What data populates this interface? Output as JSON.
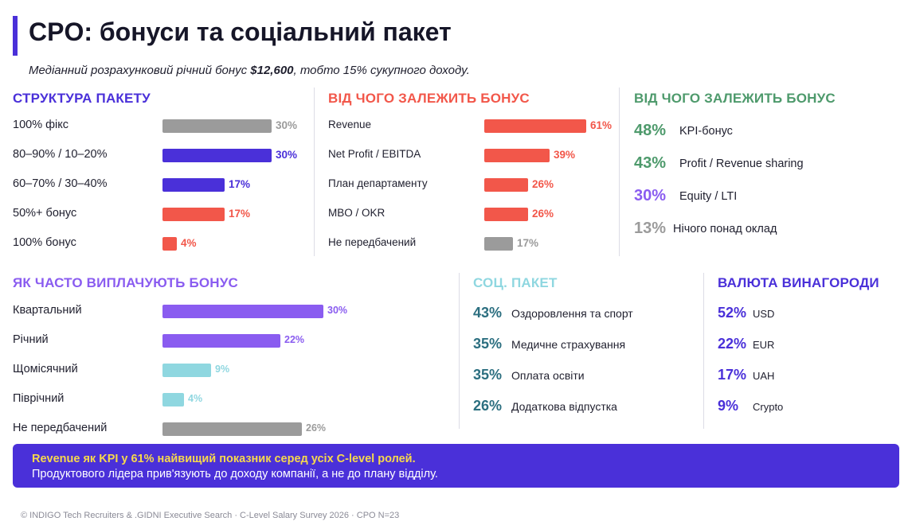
{
  "header": {
    "title": "CPO: бонуси та соціальний пакет",
    "subtitle_pre": "Медіанний розрахунковий річний бонус ",
    "subtitle_bold": "$12,600",
    "subtitle_post": ", тобто 15% сукупного доходу."
  },
  "colors": {
    "accent": "#4a30d9",
    "red": "#f2574a",
    "gray": "#9b9b9b",
    "green": "#4e9a6c",
    "purple": "#8a5cf0",
    "lightblue": "#8fd7e0",
    "teal": "#2c6f80",
    "yellow": "#f7d94c"
  },
  "chart_data": [
    {
      "id": "structure",
      "type": "bar",
      "title": "СТРУКТУРА ПАКЕТУ",
      "categories": [
        "100% фікс",
        "80–90% / 10–20%",
        "60–70% / 30–40%",
        "50%+ бонус",
        "100% бонус"
      ],
      "values": [
        30,
        30,
        17,
        17,
        4
      ],
      "labels": [
        "30%",
        "30%",
        "17%",
        "17%",
        "4%"
      ],
      "colors": [
        "#9b9b9b",
        "#4a30d9",
        "#4a30d9",
        "#f2574a",
        "#f2574a"
      ],
      "label_colors": [
        "#9b9b9b",
        "#4a30d9",
        "#4a30d9",
        "#f2574a",
        "#f2574a"
      ],
      "max": 30
    },
    {
      "id": "depends",
      "type": "bar",
      "title": "ВІД ЧОГО ЗАЛЕЖИТЬ БОНУС",
      "categories": [
        "Revenue",
        "Net Profit / EBITDA",
        "План департаменту",
        "MBO / OKR",
        "Не передбачений"
      ],
      "values": [
        61,
        39,
        26,
        26,
        17
      ],
      "labels": [
        "61%",
        "39%",
        "26%",
        "26%",
        "17%"
      ],
      "colors": [
        "#f2574a",
        "#f2574a",
        "#f2574a",
        "#f2574a",
        "#9b9b9b"
      ],
      "label_colors": [
        "#f2574a",
        "#f2574a",
        "#f2574a",
        "#f2574a",
        "#9b9b9b"
      ],
      "max": 61
    },
    {
      "id": "frequency",
      "type": "bar",
      "title": "ЯК ЧАСТО ВИПЛАЧУЮТЬ БОНУС",
      "categories": [
        "Квартальний",
        "Річний",
        "Щомісячний",
        "Піврічний",
        "Не передбачений"
      ],
      "values": [
        30,
        22,
        9,
        4,
        26
      ],
      "labels": [
        "30%",
        "22%",
        "9%",
        "4%",
        "26%"
      ],
      "colors": [
        "#8a5cf0",
        "#8a5cf0",
        "#8fd7e0",
        "#8fd7e0",
        "#9b9b9b"
      ],
      "label_colors": [
        "#8a5cf0",
        "#8a5cf0",
        "#8fd7e0",
        "#8fd7e0",
        "#9b9b9b"
      ],
      "max": 30
    }
  ],
  "stats": {
    "bonus_type": {
      "title": "ВІД ЧОГО ЗАЛЕЖИТЬ БОНУС",
      "items": [
        {
          "pct": "48%",
          "label": "KPI-бонус",
          "color": "#4e9a6c"
        },
        {
          "pct": "43%",
          "label": "Profit / Revenue sharing",
          "color": "#4e9a6c"
        },
        {
          "pct": "30%",
          "label": "Equity / LTI",
          "color": "#8a5cf0"
        },
        {
          "pct": "13%",
          "label": "Нічого понад оклад",
          "color": "#9b9b9b"
        }
      ]
    },
    "social": {
      "title": "СОЦ. ПАКЕТ",
      "items": [
        {
          "pct": "43%",
          "label": "Оздоровлення та спорт",
          "color": "#2c6f80"
        },
        {
          "pct": "35%",
          "label": "Медичне страхування",
          "color": "#2c6f80"
        },
        {
          "pct": "35%",
          "label": "Оплата освіти",
          "color": "#2c6f80"
        },
        {
          "pct": "26%",
          "label": "Додаткова відпустка",
          "color": "#2c6f80"
        }
      ]
    },
    "currency": {
      "title": "ВАЛЮТА ВИНАГОРОДИ",
      "items": [
        {
          "pct": "52%",
          "label": "USD",
          "color": "#4a30d9"
        },
        {
          "pct": "22%",
          "label": "EUR",
          "color": "#4a30d9"
        },
        {
          "pct": "17%",
          "label": "UAH",
          "color": "#4a30d9"
        },
        {
          "pct": "9%",
          "label": "Crypto",
          "color": "#4a30d9"
        }
      ]
    }
  },
  "banner": {
    "line1": "Revenue як KPI у 61% найвищий показник серед усіх C-level ролей.",
    "line2": "Продуктового лідера прив'язують до доходу компанії, а не до плану відділу."
  },
  "footer": "© INDIGO Tech Recruiters & .GIDNI Executive Search · C-Level Salary Survey 2026 · CPO N=23"
}
